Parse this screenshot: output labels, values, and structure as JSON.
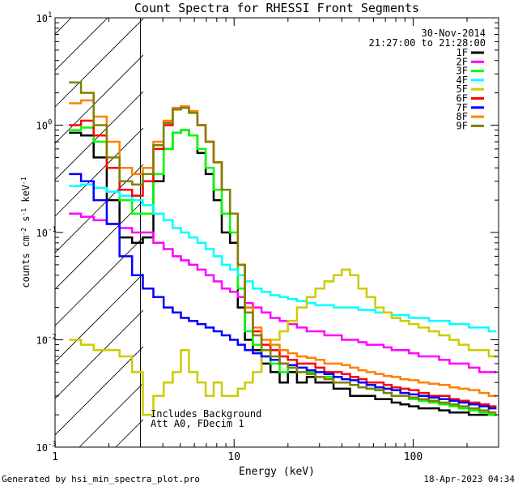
{
  "chart_data": {
    "type": "line",
    "title": "Count Spectra for RHESSI Front Segments",
    "xlabel": "Energy (keV)",
    "ylabel_parts": [
      "counts cm",
      "-2",
      " s",
      "-1",
      " keV",
      "-1"
    ],
    "xscale": "log",
    "yscale": "log",
    "xlim": [
      1,
      300
    ],
    "ylim": [
      0.001,
      10
    ],
    "x_ticks": [
      {
        "value": 1,
        "label": "1"
      },
      {
        "value": 10,
        "label": "10"
      },
      {
        "value": 100,
        "label": "100"
      }
    ],
    "y_ticks": [
      {
        "value": 0.001,
        "base": "10",
        "exp": "-3"
      },
      {
        "value": 0.01,
        "base": "10",
        "exp": "-2"
      },
      {
        "value": 0.1,
        "base": "10",
        "exp": "-1"
      },
      {
        "value": 1,
        "base": "10",
        "exp": "0"
      },
      {
        "value": 10,
        "base": "10",
        "exp": "1"
      }
    ],
    "shaded_region": [
      1,
      3
    ],
    "date": "30-Nov-2014",
    "time_range": "21:27:00 to 21:28:00",
    "legend_position": "top-right",
    "annotations": [
      "Includes Background",
      "Att A0, FDecim 1"
    ],
    "series": [
      {
        "name": "1F",
        "color": "#000000",
        "x": [
          1.3,
          1.5,
          1.8,
          2.1,
          2.5,
          2.9,
          3.3,
          3.8,
          4.3,
          4.8,
          5.3,
          5.9,
          6.6,
          7.3,
          8.1,
          9.0,
          10.0,
          11.0,
          12.0,
          13.5,
          15,
          17,
          19,
          21,
          24,
          27,
          30,
          34,
          38,
          42,
          47,
          52,
          58,
          65,
          72,
          80,
          90,
          100,
          115,
          130,
          150,
          170,
          190,
          220,
          250,
          280
        ],
        "y": [
          0.85,
          0.8,
          0.5,
          0.2,
          0.09,
          0.08,
          0.09,
          0.3,
          0.6,
          0.85,
          0.9,
          0.8,
          0.55,
          0.35,
          0.2,
          0.1,
          0.08,
          0.02,
          0.01,
          0.008,
          0.006,
          0.005,
          0.004,
          0.005,
          0.004,
          0.0045,
          0.004,
          0.004,
          0.0035,
          0.0035,
          0.003,
          0.003,
          0.003,
          0.0028,
          0.0028,
          0.0026,
          0.0025,
          0.0024,
          0.0023,
          0.0023,
          0.0022,
          0.0021,
          0.0021,
          0.002,
          0.002,
          0.002
        ]
      },
      {
        "name": "2F",
        "color": "#ff00ff",
        "x": [
          1.3,
          1.5,
          1.8,
          2.1,
          2.5,
          2.9,
          3.3,
          3.8,
          4.3,
          4.8,
          5.3,
          5.9,
          6.6,
          7.3,
          8.1,
          9.0,
          10.0,
          11.0,
          12.0,
          13.5,
          15,
          17,
          19,
          21,
          24,
          27,
          30,
          34,
          38,
          42,
          47,
          52,
          58,
          65,
          72,
          80,
          90,
          100,
          115,
          130,
          150,
          170,
          190,
          220,
          250,
          280
        ],
        "y": [
          0.15,
          0.14,
          0.13,
          0.12,
          0.11,
          0.1,
          0.1,
          0.08,
          0.07,
          0.06,
          0.055,
          0.05,
          0.045,
          0.04,
          0.035,
          0.03,
          0.028,
          0.025,
          0.022,
          0.02,
          0.018,
          0.016,
          0.015,
          0.014,
          0.013,
          0.012,
          0.012,
          0.011,
          0.011,
          0.01,
          0.01,
          0.0095,
          0.009,
          0.009,
          0.0085,
          0.008,
          0.008,
          0.0075,
          0.007,
          0.007,
          0.0065,
          0.006,
          0.006,
          0.0055,
          0.005,
          0.005
        ]
      },
      {
        "name": "3F",
        "color": "#00ff00",
        "x": [
          1.3,
          1.5,
          1.8,
          2.1,
          2.5,
          2.9,
          3.3,
          3.8,
          4.3,
          4.8,
          5.3,
          5.9,
          6.6,
          7.3,
          8.1,
          9.0,
          10.0,
          11.0,
          12.0,
          13.5,
          15,
          17,
          19,
          21,
          24,
          27,
          30,
          34,
          38,
          42,
          47,
          52,
          58,
          65,
          72,
          80,
          90,
          100,
          115,
          130,
          150,
          170,
          190,
          220,
          250,
          280
        ],
        "y": [
          0.9,
          0.95,
          0.7,
          0.4,
          0.2,
          0.15,
          0.15,
          0.35,
          0.6,
          0.85,
          0.9,
          0.8,
          0.6,
          0.4,
          0.25,
          0.15,
          0.1,
          0.03,
          0.012,
          0.009,
          0.007,
          0.006,
          0.005,
          0.0055,
          0.005,
          0.005,
          0.0045,
          0.0045,
          0.004,
          0.004,
          0.0038,
          0.0036,
          0.0035,
          0.0034,
          0.0032,
          0.003,
          0.003,
          0.0028,
          0.0027,
          0.0026,
          0.0025,
          0.0024,
          0.0023,
          0.0022,
          0.0021,
          0.002
        ]
      },
      {
        "name": "4F",
        "color": "#00ffff",
        "x": [
          1.3,
          1.5,
          1.8,
          2.1,
          2.5,
          2.9,
          3.3,
          3.8,
          4.3,
          4.8,
          5.3,
          5.9,
          6.6,
          7.3,
          8.1,
          9.0,
          10.0,
          11.0,
          12.0,
          13.5,
          15,
          17,
          19,
          21,
          24,
          27,
          30,
          34,
          38,
          42,
          47,
          52,
          58,
          65,
          72,
          80,
          90,
          100,
          115,
          130,
          150,
          170,
          190,
          220,
          250,
          280
        ],
        "y": [
          0.27,
          0.28,
          0.26,
          0.24,
          0.22,
          0.2,
          0.18,
          0.15,
          0.13,
          0.11,
          0.1,
          0.09,
          0.08,
          0.07,
          0.06,
          0.05,
          0.045,
          0.04,
          0.035,
          0.03,
          0.028,
          0.026,
          0.025,
          0.024,
          0.023,
          0.022,
          0.021,
          0.021,
          0.02,
          0.02,
          0.02,
          0.019,
          0.019,
          0.018,
          0.018,
          0.017,
          0.017,
          0.016,
          0.016,
          0.015,
          0.015,
          0.014,
          0.014,
          0.013,
          0.013,
          0.012
        ]
      },
      {
        "name": "5F",
        "color": "#cccc00",
        "x": [
          1.3,
          1.5,
          1.8,
          2.1,
          2.5,
          2.9,
          3.3,
          3.8,
          4.3,
          4.8,
          5.3,
          5.9,
          6.6,
          7.3,
          8.1,
          9.0,
          10.0,
          11.0,
          12.0,
          13.5,
          15,
          17,
          19,
          21,
          24,
          27,
          30,
          34,
          38,
          42,
          47,
          52,
          58,
          65,
          72,
          80,
          90,
          100,
          115,
          130,
          150,
          170,
          190,
          220,
          250,
          280
        ],
        "y": [
          0.01,
          0.009,
          0.008,
          0.008,
          0.007,
          0.005,
          0.002,
          0.003,
          0.004,
          0.005,
          0.008,
          0.005,
          0.004,
          0.003,
          0.004,
          0.003,
          0.003,
          0.0035,
          0.004,
          0.005,
          0.007,
          0.01,
          0.012,
          0.015,
          0.02,
          0.025,
          0.03,
          0.035,
          0.04,
          0.045,
          0.04,
          0.03,
          0.025,
          0.02,
          0.018,
          0.016,
          0.015,
          0.014,
          0.013,
          0.012,
          0.011,
          0.01,
          0.009,
          0.008,
          0.008,
          0.007
        ]
      },
      {
        "name": "6F",
        "color": "#ff0000",
        "x": [
          1.3,
          1.5,
          1.8,
          2.1,
          2.5,
          2.9,
          3.3,
          3.8,
          4.3,
          4.8,
          5.3,
          5.9,
          6.6,
          7.3,
          8.1,
          9.0,
          10.0,
          11.0,
          12.0,
          13.5,
          15,
          17,
          19,
          21,
          24,
          27,
          30,
          34,
          38,
          42,
          47,
          52,
          58,
          65,
          72,
          80,
          90,
          100,
          115,
          130,
          150,
          170,
          190,
          220,
          250,
          280
        ],
        "y": [
          1.0,
          1.1,
          0.8,
          0.4,
          0.25,
          0.22,
          0.3,
          0.6,
          1.0,
          1.4,
          1.5,
          1.35,
          1.0,
          0.7,
          0.45,
          0.25,
          0.15,
          0.05,
          0.02,
          0.012,
          0.009,
          0.008,
          0.007,
          0.0065,
          0.006,
          0.006,
          0.0055,
          0.005,
          0.005,
          0.0048,
          0.0045,
          0.0043,
          0.004,
          0.004,
          0.0038,
          0.0036,
          0.0035,
          0.0034,
          0.0032,
          0.003,
          0.003,
          0.0028,
          0.0027,
          0.0026,
          0.0025,
          0.0024
        ]
      },
      {
        "name": "7F",
        "color": "#0000ff",
        "x": [
          1.3,
          1.5,
          1.8,
          2.1,
          2.5,
          2.9,
          3.3,
          3.8,
          4.3,
          4.8,
          5.3,
          5.9,
          6.6,
          7.3,
          8.1,
          9.0,
          10.0,
          11.0,
          12.0,
          13.5,
          15,
          17,
          19,
          21,
          24,
          27,
          30,
          34,
          38,
          42,
          47,
          52,
          58,
          65,
          72,
          80,
          90,
          100,
          115,
          130,
          150,
          170,
          190,
          220,
          250,
          280
        ],
        "y": [
          0.35,
          0.3,
          0.2,
          0.12,
          0.06,
          0.04,
          0.03,
          0.025,
          0.02,
          0.018,
          0.016,
          0.015,
          0.014,
          0.013,
          0.012,
          0.011,
          0.01,
          0.009,
          0.008,
          0.0075,
          0.007,
          0.0065,
          0.006,
          0.0058,
          0.0055,
          0.0052,
          0.005,
          0.0048,
          0.0045,
          0.0043,
          0.0042,
          0.004,
          0.0038,
          0.0036,
          0.0035,
          0.0034,
          0.0032,
          0.0031,
          0.003,
          0.0029,
          0.0028,
          0.0027,
          0.0026,
          0.0025,
          0.0024,
          0.0023
        ]
      },
      {
        "name": "8F",
        "color": "#ff8000",
        "x": [
          1.3,
          1.5,
          1.8,
          2.1,
          2.5,
          2.9,
          3.3,
          3.8,
          4.3,
          4.8,
          5.3,
          5.9,
          6.6,
          7.3,
          8.1,
          9.0,
          10.0,
          11.0,
          12.0,
          13.5,
          15,
          17,
          19,
          21,
          24,
          27,
          30,
          34,
          38,
          42,
          47,
          52,
          58,
          65,
          72,
          80,
          90,
          100,
          115,
          130,
          150,
          170,
          190,
          220,
          250,
          280
        ],
        "y": [
          1.6,
          1.7,
          1.2,
          0.7,
          0.4,
          0.35,
          0.4,
          0.7,
          1.1,
          1.45,
          1.5,
          1.35,
          1.0,
          0.7,
          0.45,
          0.25,
          0.15,
          0.05,
          0.02,
          0.013,
          0.01,
          0.009,
          0.008,
          0.0075,
          0.007,
          0.0068,
          0.0065,
          0.006,
          0.006,
          0.0058,
          0.0055,
          0.0052,
          0.005,
          0.0048,
          0.0046,
          0.0045,
          0.0043,
          0.0042,
          0.004,
          0.0039,
          0.0038,
          0.0036,
          0.0035,
          0.0034,
          0.0032,
          0.003
        ]
      },
      {
        "name": "9F",
        "color": "#808000",
        "x": [
          1.3,
          1.5,
          1.8,
          2.1,
          2.5,
          2.9,
          3.3,
          3.8,
          4.3,
          4.8,
          5.3,
          5.9,
          6.6,
          7.3,
          8.1,
          9.0,
          10.0,
          11.0,
          12.0,
          13.5,
          15,
          17,
          19,
          21,
          24,
          27,
          30,
          34,
          38,
          42,
          47,
          52,
          58,
          65,
          72,
          80,
          90,
          100,
          115,
          130,
          150,
          170,
          190,
          220,
          250,
          280
        ],
        "y": [
          2.5,
          2.0,
          1.0,
          0.5,
          0.3,
          0.28,
          0.35,
          0.65,
          1.05,
          1.4,
          1.45,
          1.3,
          1.0,
          0.7,
          0.45,
          0.25,
          0.15,
          0.05,
          0.018,
          0.011,
          0.008,
          0.007,
          0.006,
          0.0055,
          0.005,
          0.0048,
          0.0045,
          0.0043,
          0.004,
          0.004,
          0.0038,
          0.0036,
          0.0035,
          0.0034,
          0.0032,
          0.003,
          0.003,
          0.0029,
          0.0028,
          0.0027,
          0.0026,
          0.0025,
          0.0024,
          0.0023,
          0.0022,
          0.0021
        ]
      }
    ]
  },
  "footer": {
    "left": "Generated by hsi_min_spectra_plot.pro",
    "right": "18-Apr-2023 04:34"
  }
}
